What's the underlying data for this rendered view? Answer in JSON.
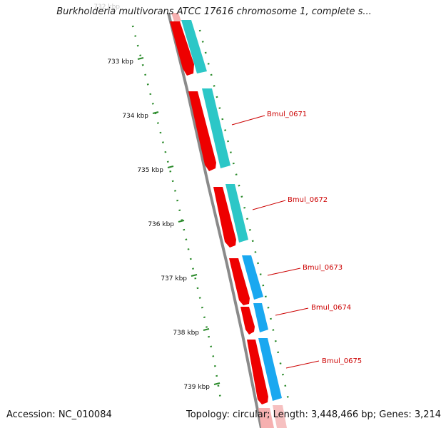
{
  "header": {
    "title": "Burkholderia multivorans ATCC 17616 chromosome 1, complete s..."
  },
  "footer": {
    "accession": "Accession: NC_010084",
    "summary": "Topology: circular; Length: 3,448,466 bp; Genes: 3,214"
  },
  "ruler": {
    "top_tick_label": "732 kbp",
    "ticks": [
      {
        "label": "733 kbp"
      },
      {
        "label": "734 kbp"
      },
      {
        "label": "735 kbp"
      },
      {
        "label": "736 kbp"
      },
      {
        "label": "737 kbp"
      },
      {
        "label": "738 kbp"
      },
      {
        "label": "739 kbp"
      }
    ]
  },
  "genes": [
    {
      "label": "Bmul_0671"
    },
    {
      "label": "Bmul_0672"
    },
    {
      "label": "Bmul_0673"
    },
    {
      "label": "Bmul_0674"
    },
    {
      "label": "Bmul_0675"
    }
  ],
  "colors": {
    "backbone": "#8a8a8a",
    "gene_red": "#ee0000",
    "cds_cyan": "#2cc7c7",
    "cds_blue": "#1aa8f0",
    "tick_green": "#2a8a2a",
    "label_red": "#cc0000"
  }
}
